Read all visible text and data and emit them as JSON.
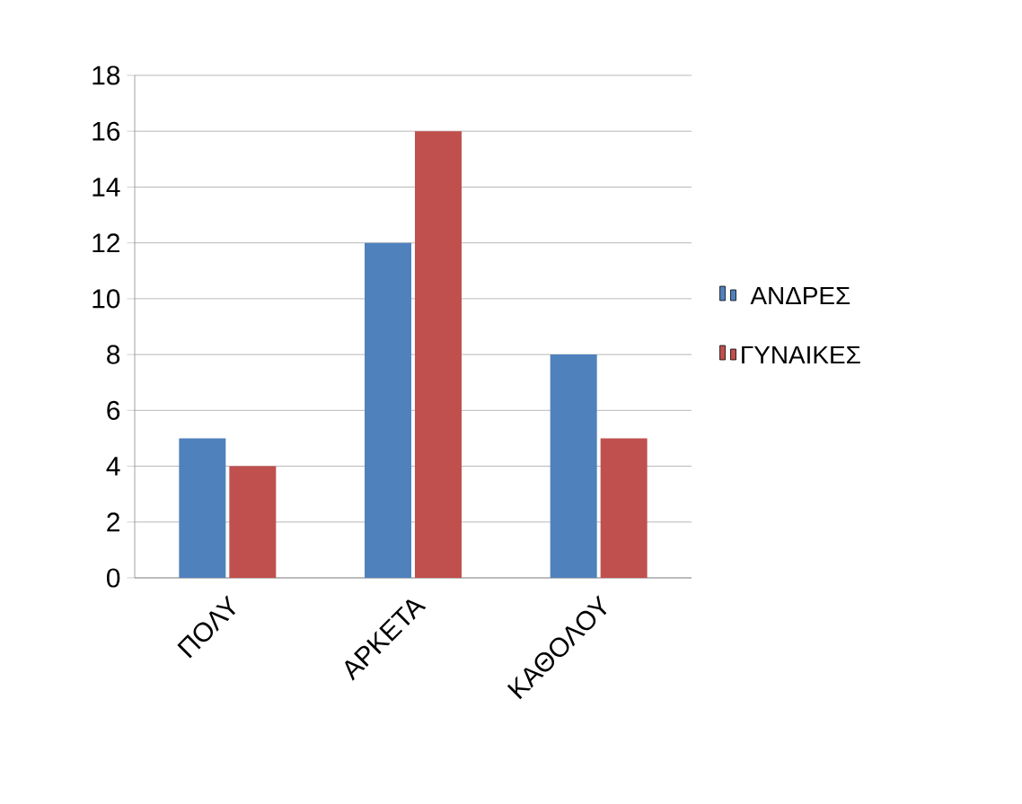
{
  "chart_data": {
    "type": "bar",
    "categories": [
      "ΠΟΛΥ",
      "ΑΡΚΕΤΑ",
      "ΚΑΘΟΛΟΥ"
    ],
    "series": [
      {
        "name": "ΑΝΔΡΕΣ",
        "color": "#4f81bd",
        "values": [
          5,
          12,
          8
        ]
      },
      {
        "name": "ΓΥΝΑΙΚΕΣ",
        "color": "#c0504d",
        "values": [
          4,
          16,
          5
        ]
      }
    ],
    "ylim": [
      0,
      18
    ],
    "yticks": [
      0,
      2,
      4,
      6,
      8,
      10,
      12,
      14,
      16,
      18
    ],
    "grid": "y",
    "legend": "right"
  }
}
